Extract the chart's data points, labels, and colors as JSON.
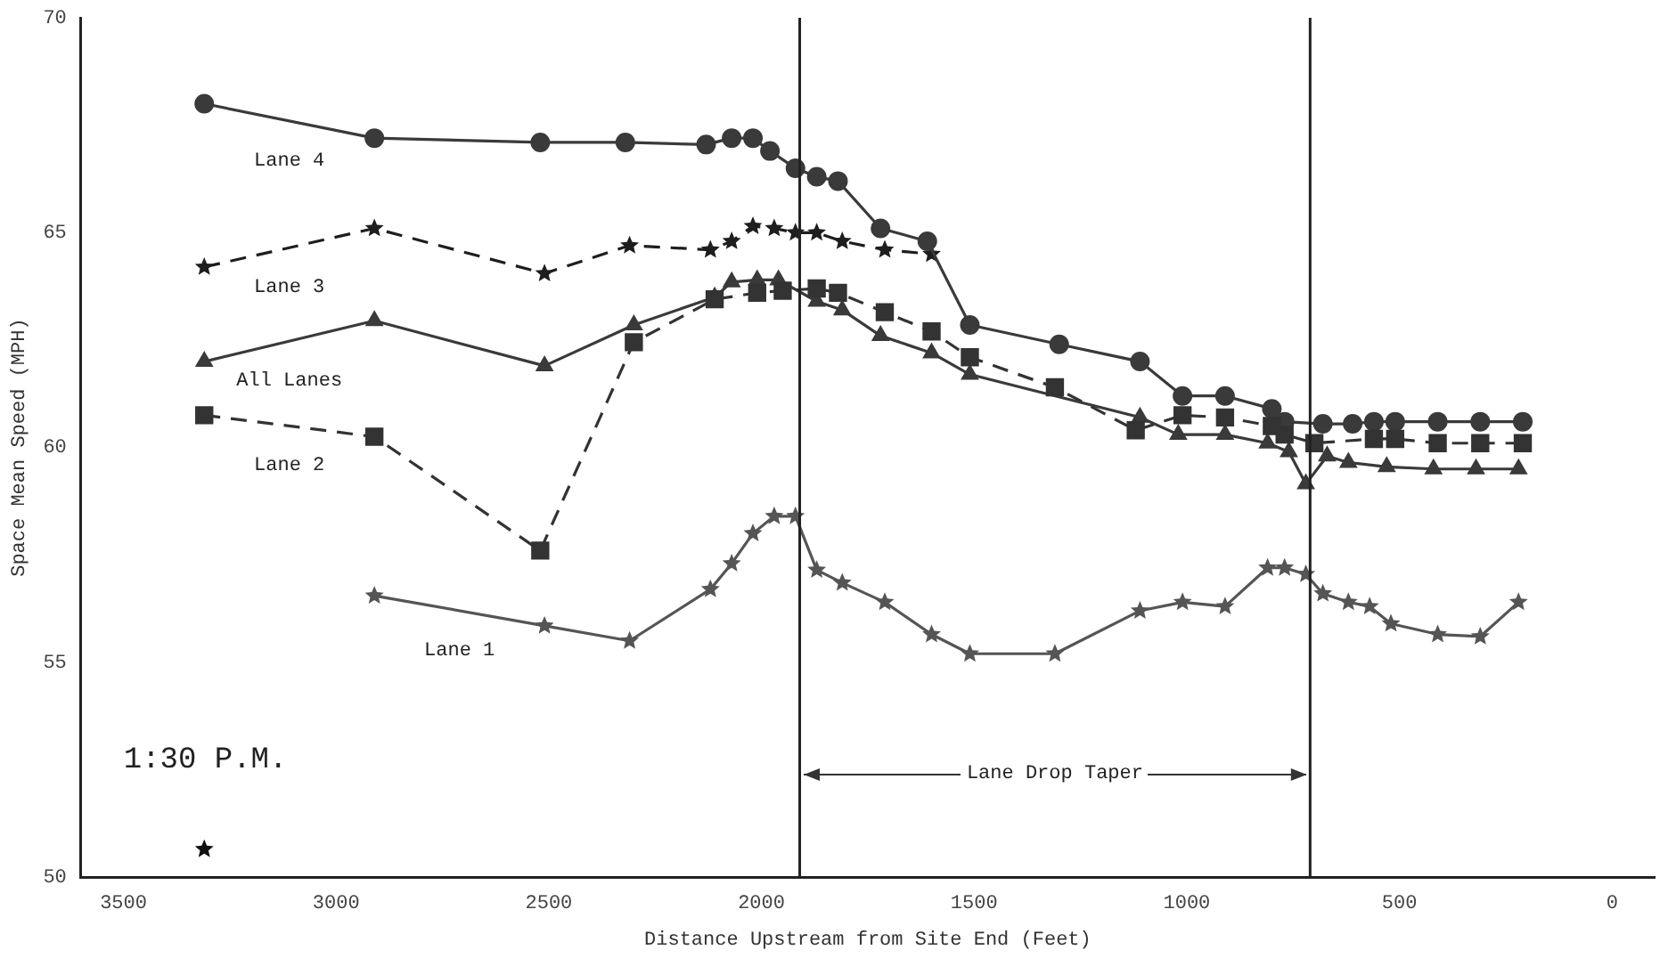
{
  "chart_data": {
    "type": "line",
    "xlabel": "Distance Upstream from Site End (Feet)",
    "ylabel": "Space Mean Speed (MPH)",
    "xlim": [
      3600,
      -100
    ],
    "xticks": [
      3500,
      3000,
      2500,
      2000,
      1500,
      1000,
      500,
      0
    ],
    "ylim": [
      50,
      70
    ],
    "yticks": [
      50,
      55,
      60,
      65,
      70
    ],
    "grid": false,
    "legend": false,
    "series": [
      {
        "name": "Lane 4",
        "color": "#3a3a3a",
        "marker": "circle",
        "line_style": "solid",
        "x": [
          3310,
          2910,
          2520,
          2320,
          2130,
          2070,
          2020,
          1980,
          1920,
          1870,
          1820,
          1720,
          1610,
          1510,
          1300,
          1110,
          1010,
          910,
          800,
          770,
          680,
          610,
          560,
          510,
          410,
          310,
          210
        ],
        "values": [
          68.0,
          67.2,
          67.1,
          67.1,
          67.05,
          67.2,
          67.2,
          66.9,
          66.5,
          66.3,
          66.2,
          65.1,
          64.8,
          62.85,
          62.4,
          62.0,
          61.2,
          61.2,
          60.9,
          60.6,
          60.55,
          60.55,
          60.6,
          60.6,
          60.6,
          60.6,
          60.6
        ]
      },
      {
        "name": "Lane 3",
        "color": "#1e1e1e",
        "marker": "star",
        "line_style": "dashed",
        "x": [
          3310,
          2910,
          2510,
          2310,
          2120,
          2070,
          2020,
          1970,
          1920,
          1870,
          1810,
          1710,
          1600
        ],
        "values": [
          64.2,
          65.1,
          64.05,
          64.7,
          64.6,
          64.8,
          65.15,
          65.1,
          65.0,
          65.0,
          64.8,
          64.6,
          64.5
        ]
      },
      {
        "name": "All Lanes",
        "color": "#3a3a3a",
        "marker": "triangle",
        "line_style": "solid",
        "x": [
          3310,
          2910,
          2510,
          2300,
          2110,
          2070,
          2010,
          1960,
          1870,
          1810,
          1720,
          1600,
          1510,
          1110,
          1020,
          910,
          810,
          760,
          720,
          670,
          620,
          530,
          420,
          320,
          220
        ],
        "values": [
          62.0,
          62.95,
          61.9,
          62.85,
          63.5,
          63.85,
          63.9,
          63.9,
          63.4,
          63.2,
          62.6,
          62.2,
          61.7,
          60.7,
          60.3,
          60.3,
          60.1,
          59.9,
          59.15,
          59.8,
          59.65,
          59.55,
          59.5,
          59.5,
          59.5
        ]
      },
      {
        "name": "Lane 2",
        "color": "#333333",
        "marker": "square",
        "line_style": "dashed",
        "x": [
          3310,
          2910,
          2520,
          2300,
          2110,
          2010,
          1950,
          1870,
          1820,
          1710,
          1600,
          1510,
          1310,
          1120,
          1010,
          910,
          800,
          770,
          700,
          560,
          510,
          410,
          310,
          210
        ],
        "values": [
          60.75,
          60.25,
          57.6,
          62.45,
          63.45,
          63.6,
          63.65,
          63.7,
          63.6,
          63.15,
          62.7,
          62.1,
          61.4,
          60.4,
          60.75,
          60.7,
          60.5,
          60.3,
          60.1,
          60.2,
          60.2,
          60.1,
          60.1,
          60.1
        ]
      },
      {
        "name": "Lane 1",
        "color": "#555555",
        "marker": "star",
        "line_style": "solid",
        "x": [
          2910,
          2510,
          2310,
          2120,
          2070,
          2020,
          1970,
          1920,
          1870,
          1810,
          1710,
          1600,
          1510,
          1310,
          1110,
          1010,
          910,
          810,
          770,
          720,
          680,
          620,
          570,
          520,
          410,
          310,
          220
        ],
        "values": [
          56.55,
          55.85,
          55.5,
          56.7,
          57.3,
          58.0,
          58.4,
          58.4,
          57.15,
          56.85,
          56.4,
          55.65,
          55.2,
          55.2,
          56.2,
          56.4,
          56.3,
          57.2,
          57.2,
          57.05,
          56.6,
          56.4,
          56.3,
          55.9,
          55.65,
          55.6,
          56.4
        ]
      },
      {
        "color": "#111111",
        "marker": "star",
        "x": [
          3310
        ],
        "values": [
          50.65
        ]
      }
    ],
    "ref_lines": [
      {
        "axis": "x",
        "value": 1910
      },
      {
        "axis": "x",
        "value": 710
      }
    ],
    "annotations": [
      "Lane Drop Taper",
      "1:30 P.M."
    ]
  }
}
